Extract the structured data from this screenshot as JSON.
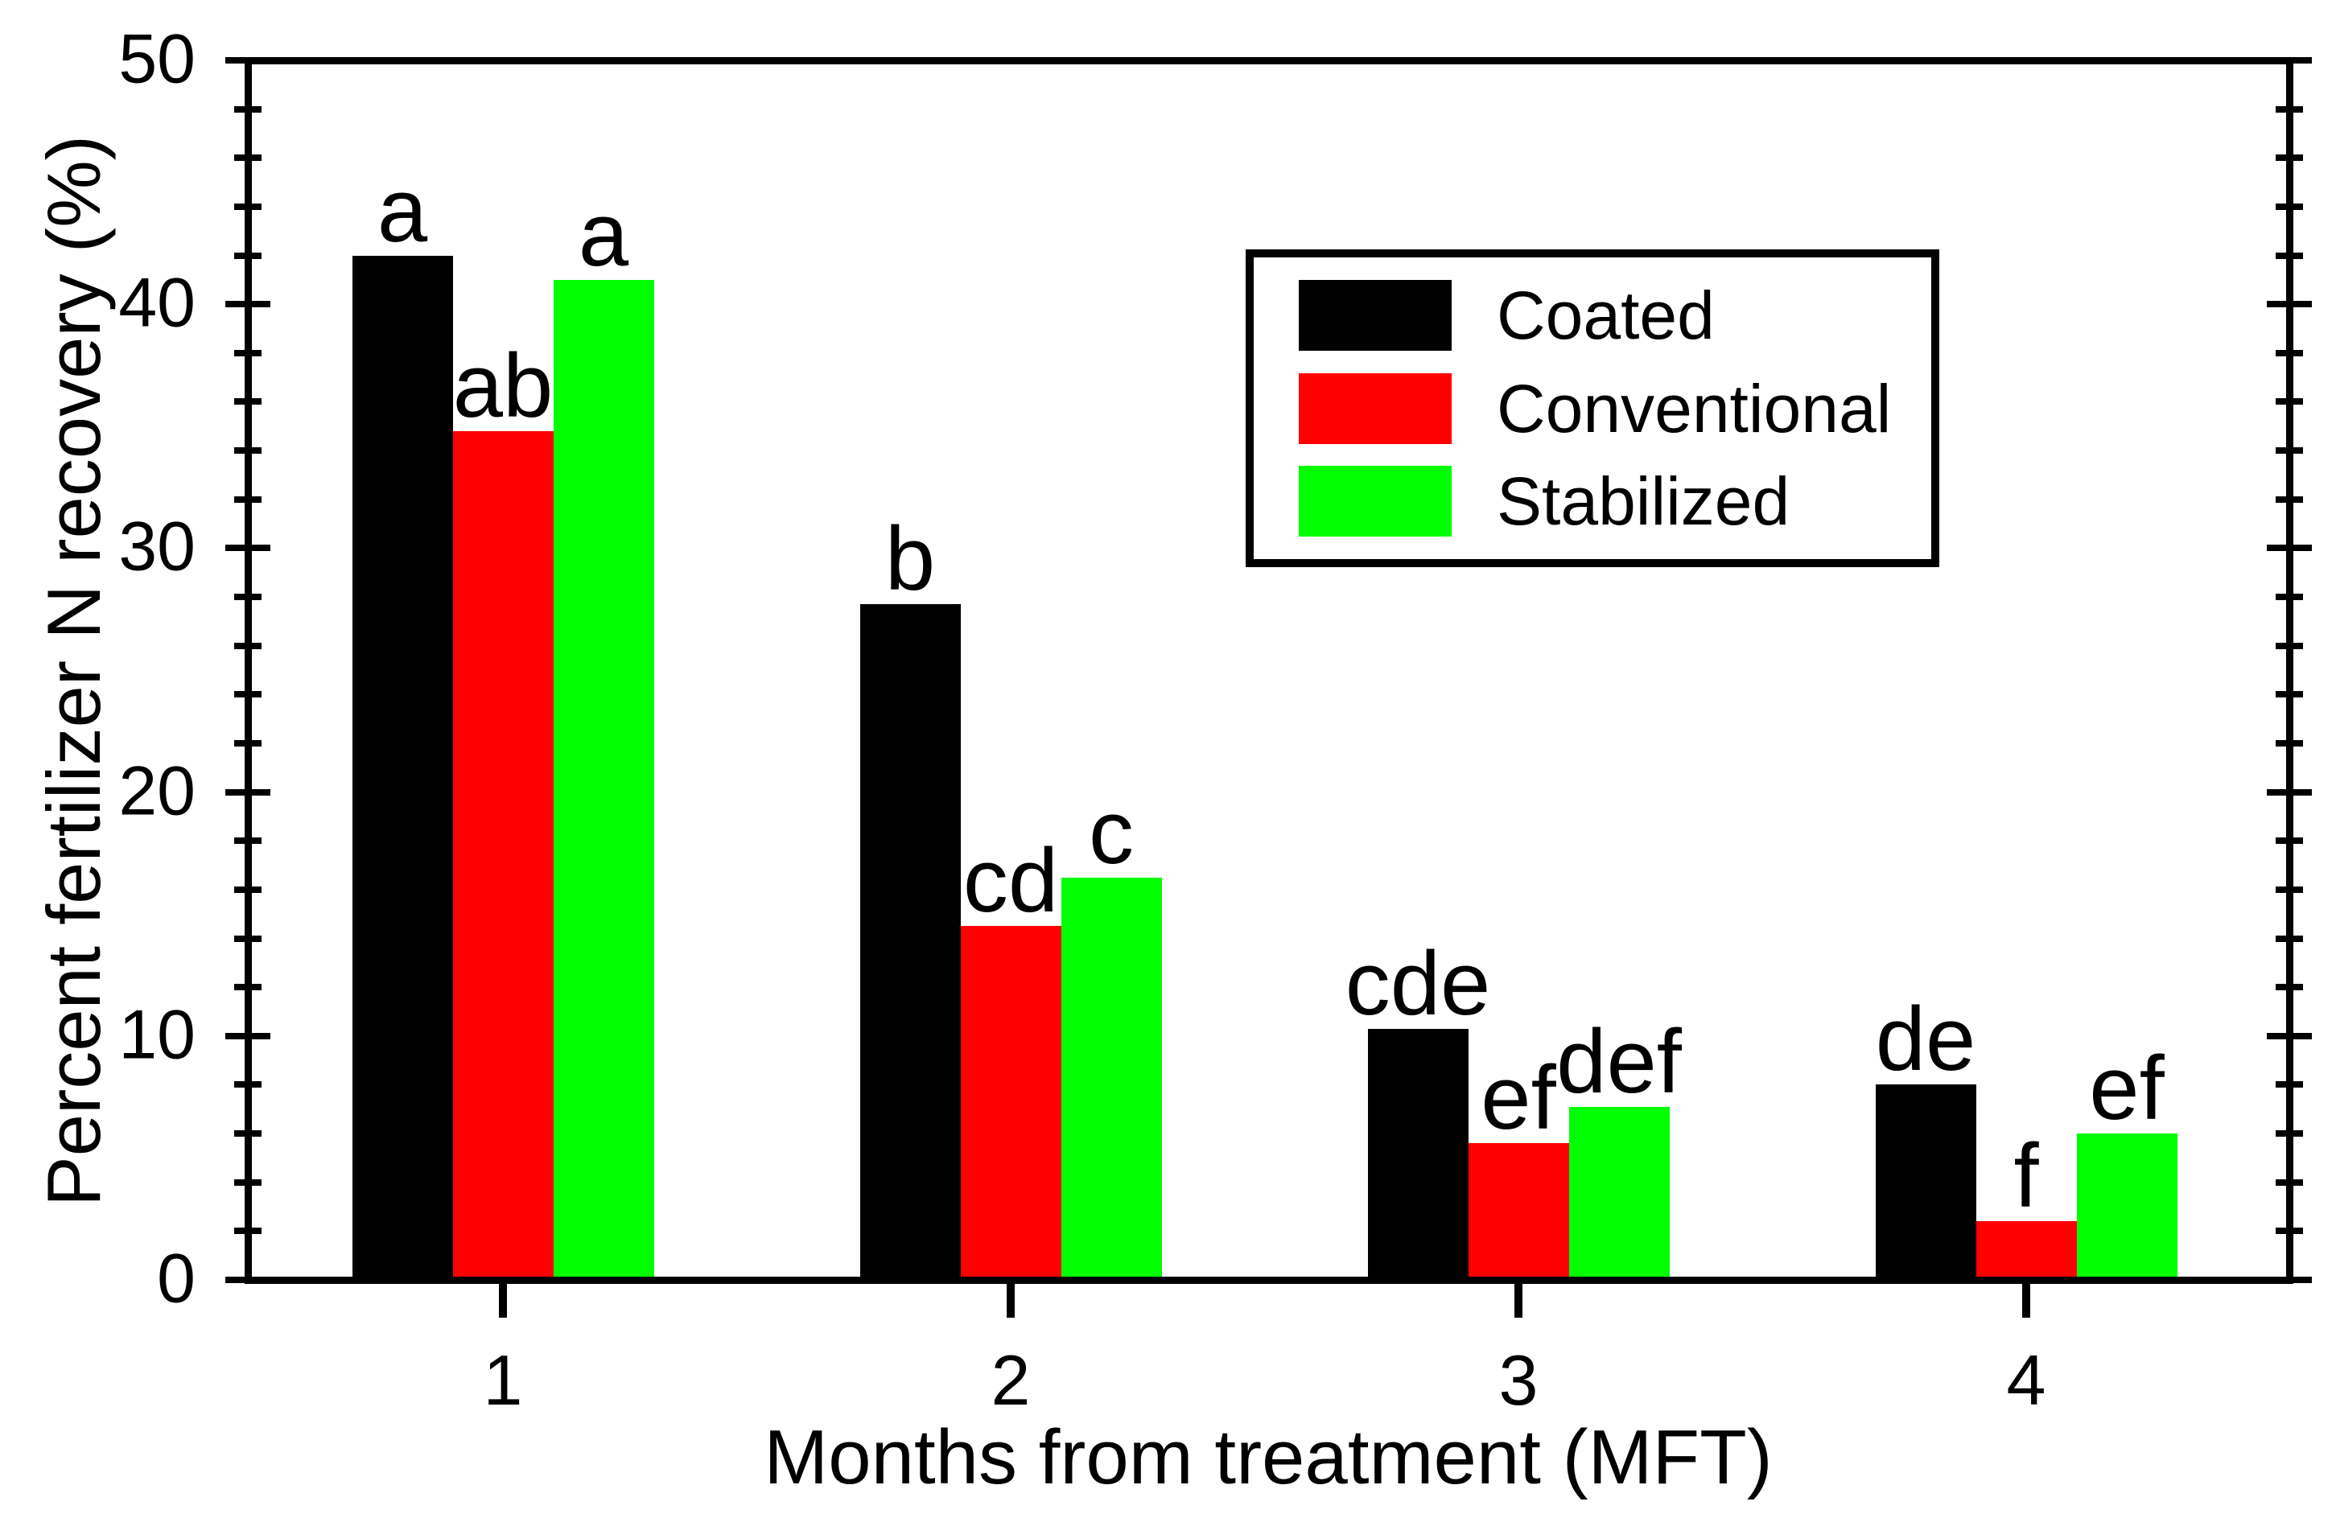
{
  "figure": {
    "background_color": "#ffffff",
    "text_color": "#000000"
  },
  "chart_data": {
    "type": "bar",
    "title": "",
    "categories": [
      "1",
      "2",
      "3",
      "4"
    ],
    "series": [
      {
        "name": "Coated",
        "color": "#000000",
        "values": [
          42.0,
          27.7,
          10.3,
          8.0
        ],
        "letters": [
          "a",
          "b",
          "cde",
          "de"
        ]
      },
      {
        "name": "Conventional",
        "color": "#ff0000",
        "values": [
          34.8,
          14.5,
          5.6,
          2.4
        ],
        "letters": [
          "ab",
          "cd",
          "ef",
          "f"
        ]
      },
      {
        "name": "Stabilized",
        "color": "#00ff00",
        "values": [
          41.0,
          16.5,
          7.1,
          6.0
        ],
        "letters": [
          "a",
          "c",
          "def",
          "ef"
        ]
      }
    ],
    "xlabel": "Months from treatment (MFT)",
    "ylabel": "Percent fertilizer N recovery (%)",
    "ylim": [
      0,
      50
    ],
    "y_major_step": 10,
    "y_minor_step": 2,
    "y_tick_labels": [
      "0",
      "10",
      "20",
      "30",
      "40",
      "50"
    ],
    "grid": false,
    "legend_position": "upper right",
    "legend": {
      "items": [
        {
          "label": "Coated",
          "color": "#000000"
        },
        {
          "label": "Conventional",
          "color": "#ff0000"
        },
        {
          "label": "Stabilized",
          "color": "#00ff00"
        }
      ]
    }
  }
}
